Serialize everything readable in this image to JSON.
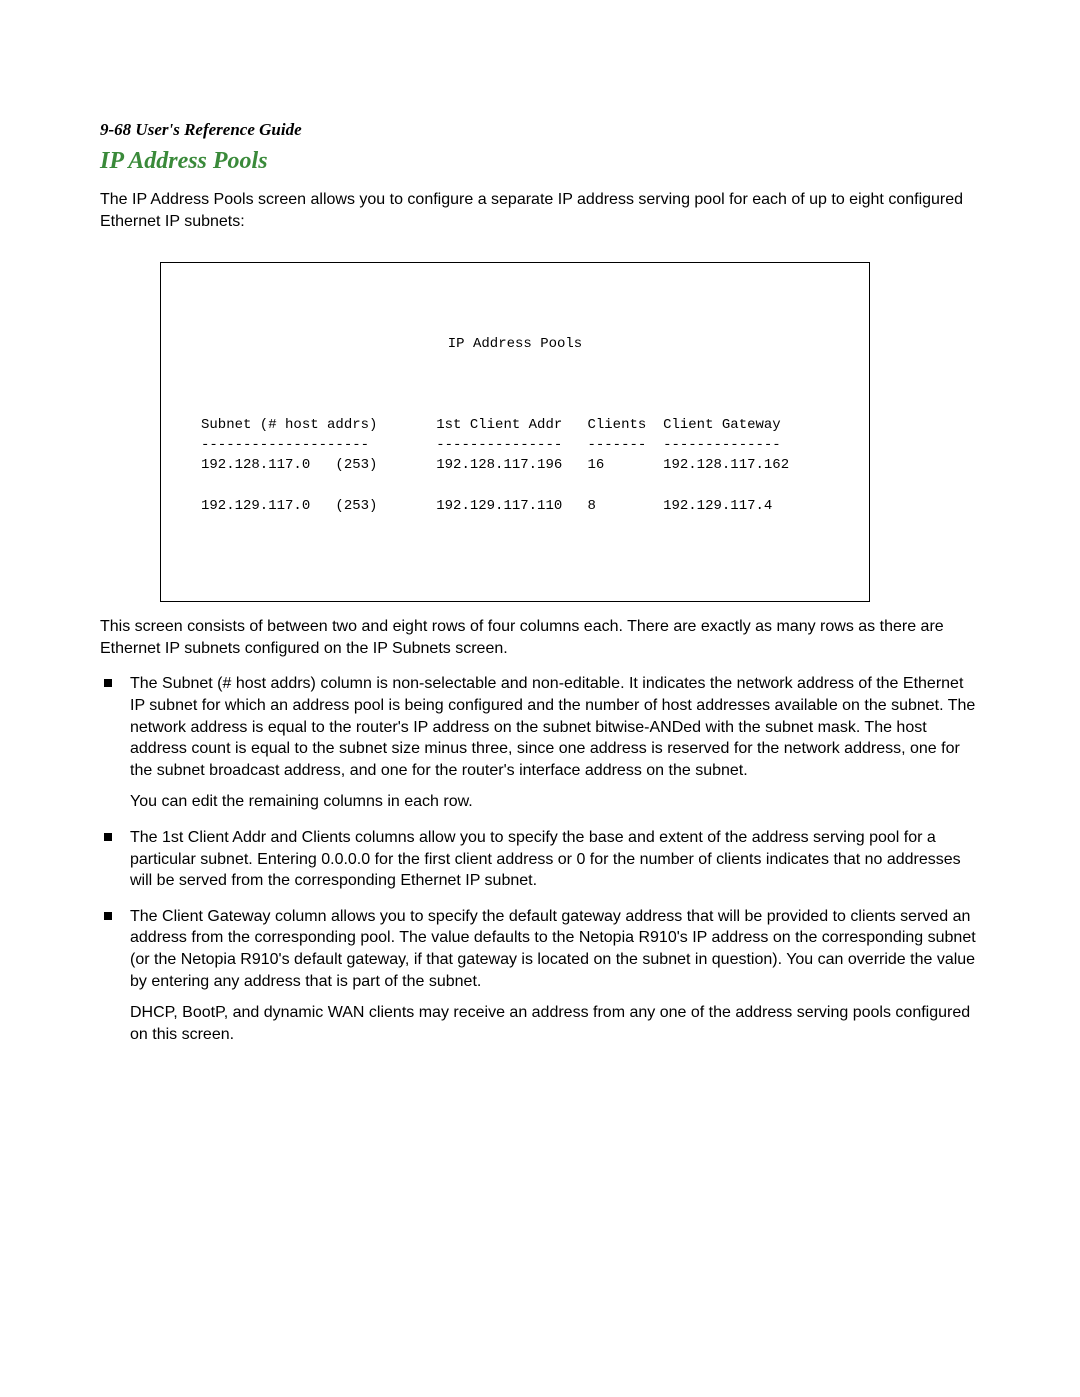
{
  "header": {
    "page_ref": "9-68",
    "guide_title": "User's Reference Guide"
  },
  "section_title": "IP Address Pools",
  "intro": "The IP Address Pools screen allows you to configure a separate IP address serving pool for each of up to eight configured Ethernet IP subnets:",
  "terminal": {
    "title": "IP Address Pools",
    "columns": {
      "subnet": "Subnet (# host addrs)",
      "first_client": "1st Client Addr",
      "clients": "Clients",
      "gateway": "Client Gateway"
    },
    "dividers": {
      "subnet": "--------------------",
      "first_client": "---------------",
      "clients": "-------",
      "gateway": "--------------"
    },
    "rows": [
      {
        "subnet": "192.128.117.0",
        "host_addrs": "(253)",
        "first_client": "192.128.117.196",
        "clients": "16",
        "gateway": "192.128.117.162"
      },
      {
        "subnet": "192.129.117.0",
        "host_addrs": "(253)",
        "first_client": "192.129.117.110",
        "clients": "8",
        "gateway": "192.129.117.4"
      }
    ]
  },
  "after_box": "This screen consists of between two and eight rows of four columns each. There are exactly as many rows as there are Ethernet IP subnets configured on the IP Subnets screen.",
  "bullets": [
    {
      "main": "The Subnet (# host addrs) column is non-selectable and non-editable. It indicates the network address of the Ethernet IP subnet for which an address pool is being configured and the number of host addresses available on the subnet. The network address is equal to the router's IP address on the subnet bitwise-ANDed with the subnet mask. The host address count is equal to the subnet size minus three, since one address is reserved for the network address, one for the subnet broadcast address, and one for the router's interface address on the subnet.",
      "sub": "You can edit the remaining columns in each row."
    },
    {
      "main": "The 1st Client Addr and Clients columns allow you to specify the base and extent of the address serving pool for a particular subnet. Entering 0.0.0.0 for the first client address or 0 for the number of clients indicates that no addresses will be served from the corresponding Ethernet IP subnet."
    },
    {
      "main": "The Client Gateway column allows you to specify the default gateway address that will be provided to clients served an address from the corresponding pool. The value defaults to the Netopia R910's IP address on the corresponding subnet (or the Netopia R910's default gateway, if that gateway is located on the subnet in question). You can override the value by entering any address that is part of the subnet.",
      "sub": "DHCP, BootP, and dynamic WAN clients may receive an address from any one of the address serving pools configured on this screen."
    }
  ]
}
